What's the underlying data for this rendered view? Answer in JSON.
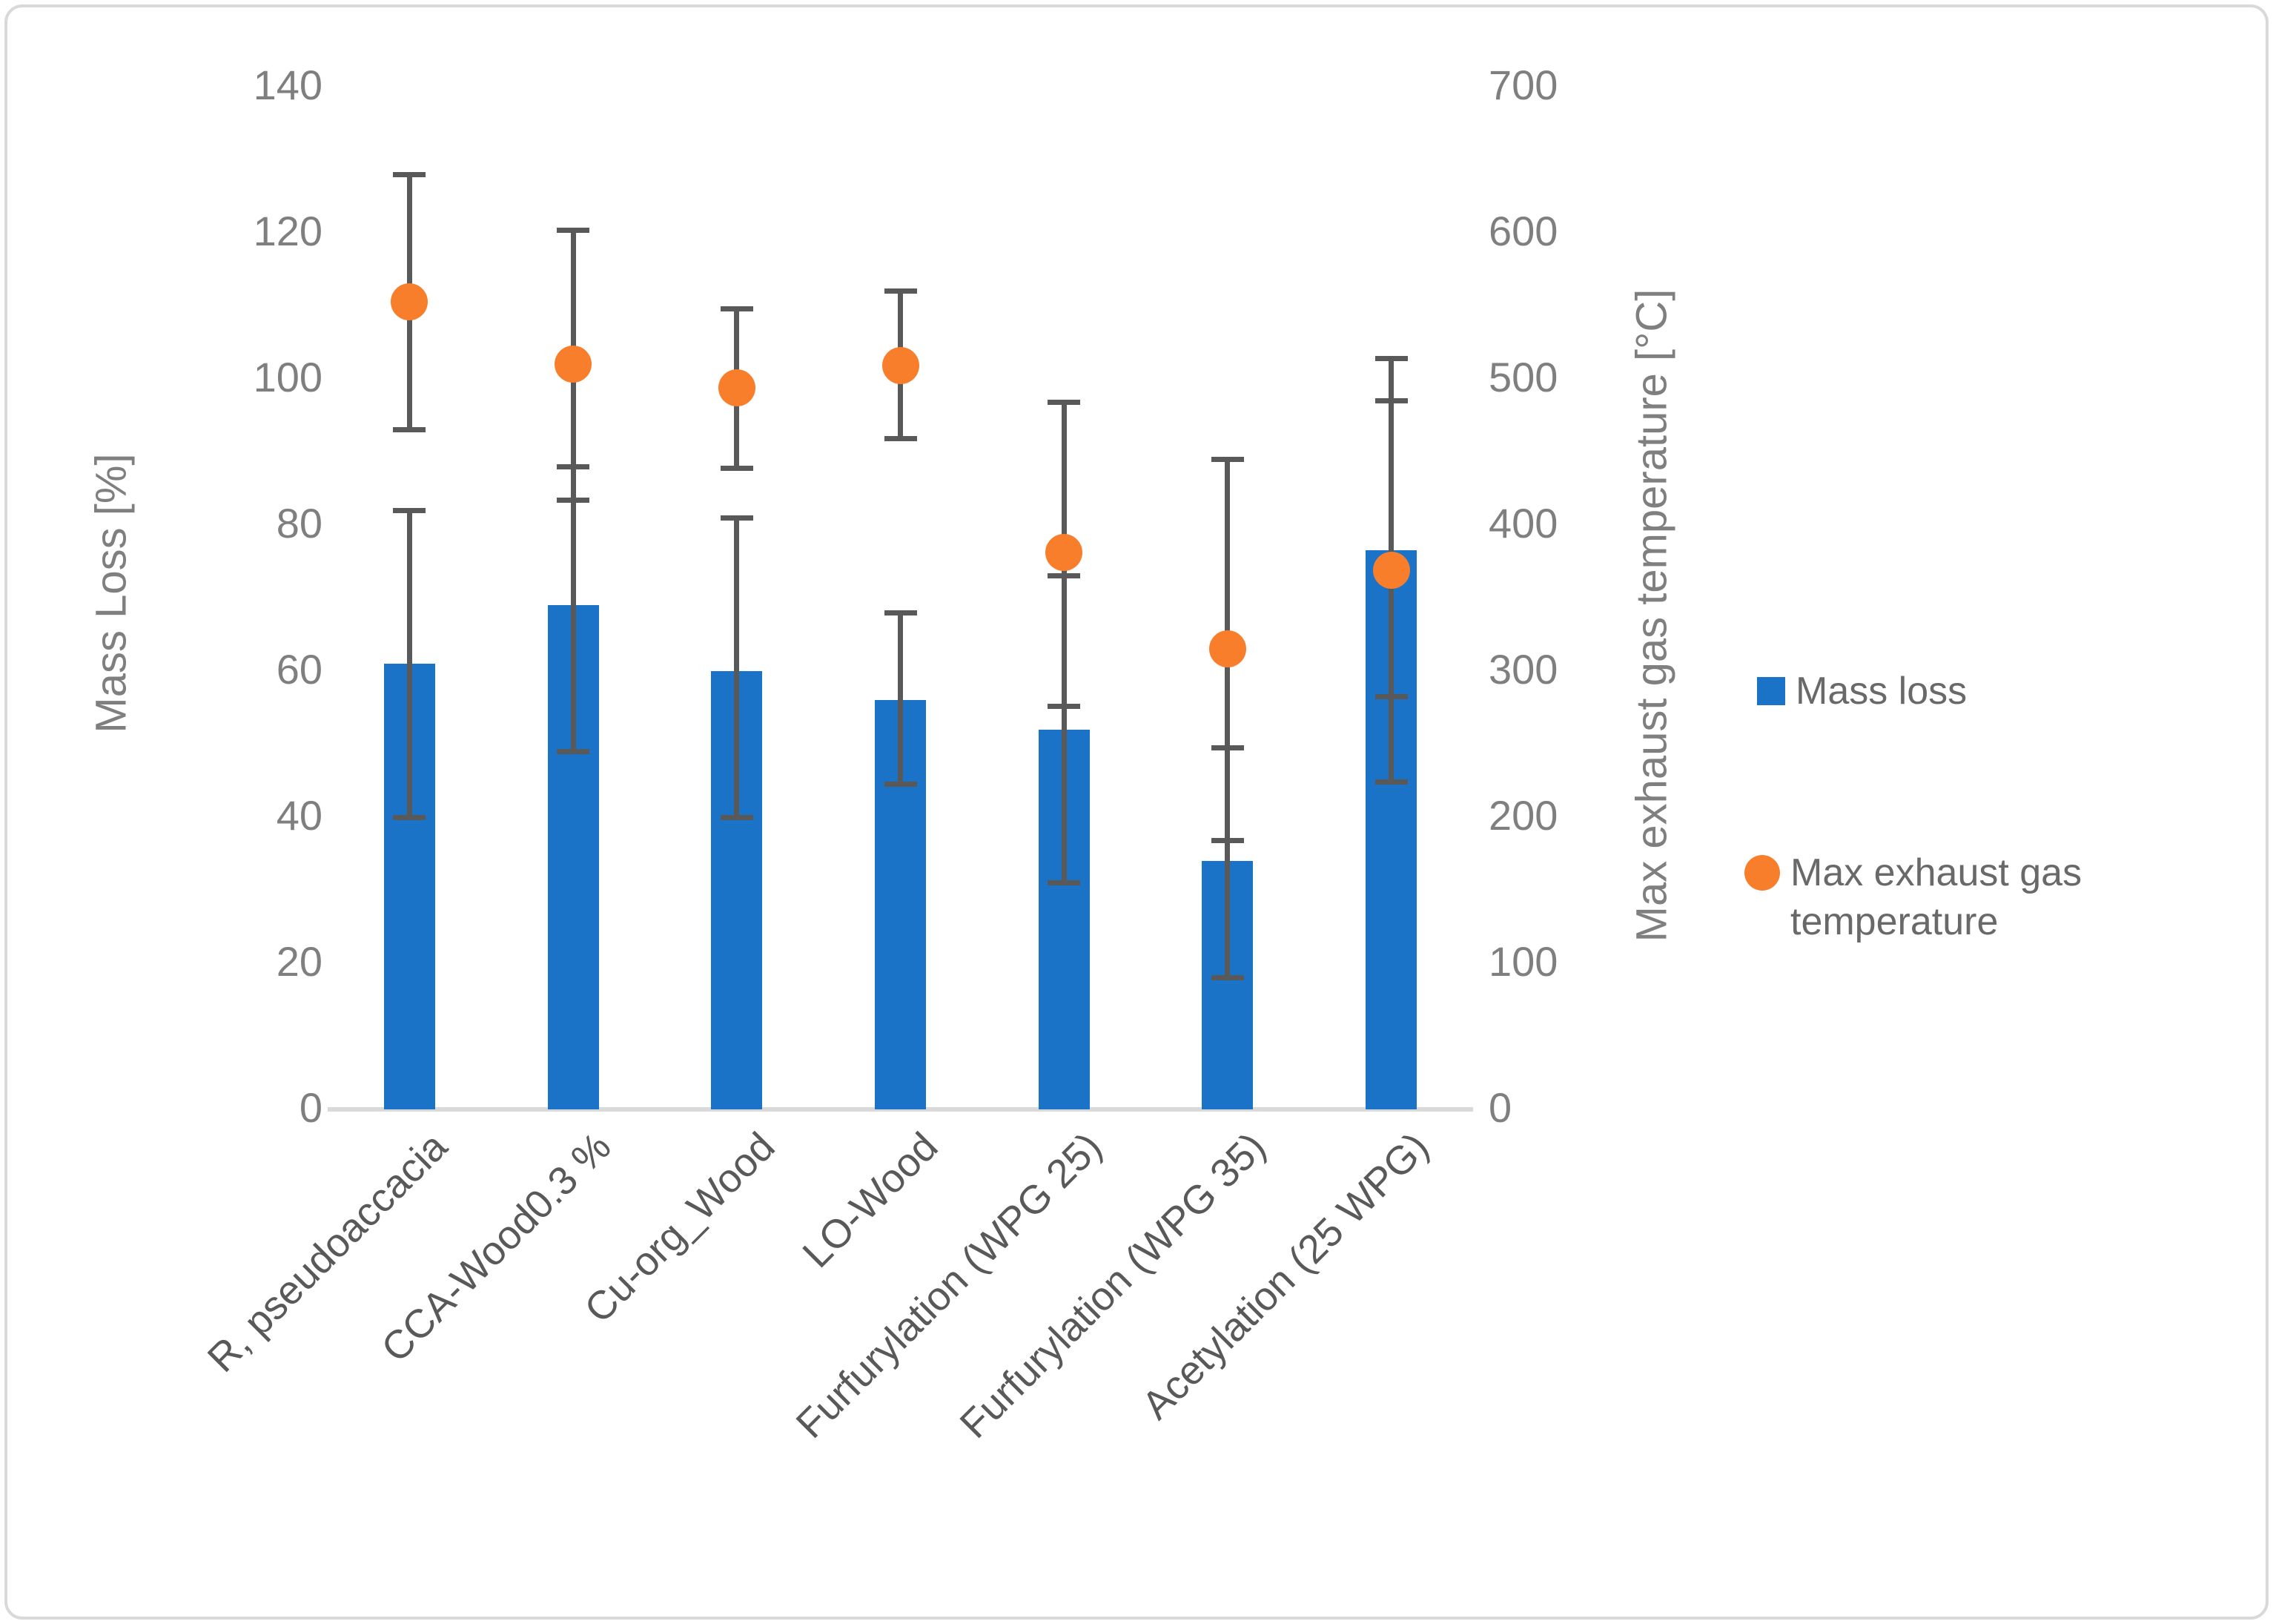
{
  "chart_data": {
    "type": "bar",
    "subtype": "combo-bar-scatter-dual-axis",
    "title": "",
    "categories": [
      "R, pseudoaccacia",
      "CCA-Wood0.3 %",
      "Cu-org_Wood",
      "LO-Wood",
      "Furfurylation (WPG 25)",
      "Furfurylation (WPG 35)",
      "Acetylation (25 WPG)"
    ],
    "series": [
      {
        "name": "Mass loss",
        "type": "bar",
        "axis": "left",
        "color": "#1b73c8",
        "values": [
          61,
          69,
          60,
          56,
          52,
          34,
          76.5
        ],
        "error_low": [
          40,
          49,
          40,
          44.5,
          31,
          18,
          56.5
        ],
        "error_high": [
          82,
          88,
          81,
          68,
          73,
          49.5,
          97
        ]
      },
      {
        "name": "Max exhaust gas temperature",
        "type": "scatter",
        "axis": "right",
        "color": "#f97e2c",
        "values": [
          553,
          510,
          494,
          509,
          381,
          315,
          369
        ],
        "error_low": [
          465,
          417,
          439,
          459,
          276,
          184,
          224
        ],
        "error_high": [
          640,
          602,
          548,
          560,
          484,
          445,
          514
        ]
      }
    ],
    "left_axis": {
      "title": "Mass Loss [%]",
      "min": 0,
      "max": 140,
      "ticks": [
        "140",
        "120",
        "100",
        "80",
        "60",
        "40",
        "20",
        "0"
      ]
    },
    "right_axis": {
      "title": "Max exhaust gas temperature [°C]",
      "min": 0,
      "max": 700,
      "ticks": [
        "700",
        "600",
        "500",
        "400",
        "300",
        "200",
        "100",
        "0"
      ]
    },
    "legend_position": "right",
    "grid": false,
    "legend": [
      {
        "label": "Mass loss",
        "marker": "square",
        "color": "#1b73c8"
      },
      {
        "label": "Max exhaust gas temperature",
        "marker": "circle",
        "color": "#f97e2c"
      }
    ]
  },
  "colors": {
    "bar_blue": "#1b73c8",
    "dot_orange": "#f97e2c",
    "error_gray": "#595959",
    "tick_text": "#7f7f7f",
    "category_text": "#595959",
    "baseline": "#d9d9d9",
    "frame_border": "#d9d9d9"
  }
}
